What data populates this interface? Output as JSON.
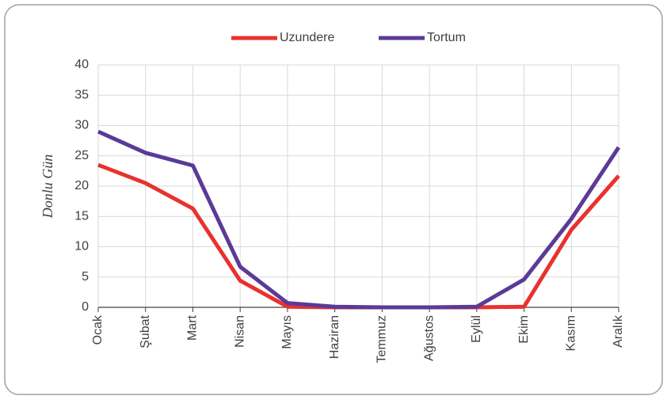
{
  "chart_data": {
    "type": "line",
    "y_label": "Donlu Gün",
    "categories": [
      "Ocak",
      "Şubat",
      "Mart",
      "Nisan",
      "Mayıs",
      "Haziran",
      "Temmuz",
      "Ağustos",
      "Eylül",
      "Ekim",
      "Kasım",
      "Aralık"
    ],
    "series": [
      {
        "name": "Uzundere",
        "color": "#e8322f",
        "values": [
          23.5,
          20.5,
          16.3,
          4.4,
          0.1,
          0,
          0,
          0,
          0,
          0.1,
          12.8,
          21.7
        ]
      },
      {
        "name": "Tortum",
        "color": "#5b3a97",
        "values": [
          29.0,
          25.5,
          23.4,
          6.7,
          0.7,
          0.1,
          0,
          0,
          0.1,
          4.6,
          14.6,
          26.4
        ]
      }
    ],
    "ylim": [
      0,
      40
    ],
    "yticks": [
      0,
      5,
      10,
      15,
      20,
      25,
      30,
      35,
      40
    ],
    "grid": true,
    "legend": "top"
  }
}
